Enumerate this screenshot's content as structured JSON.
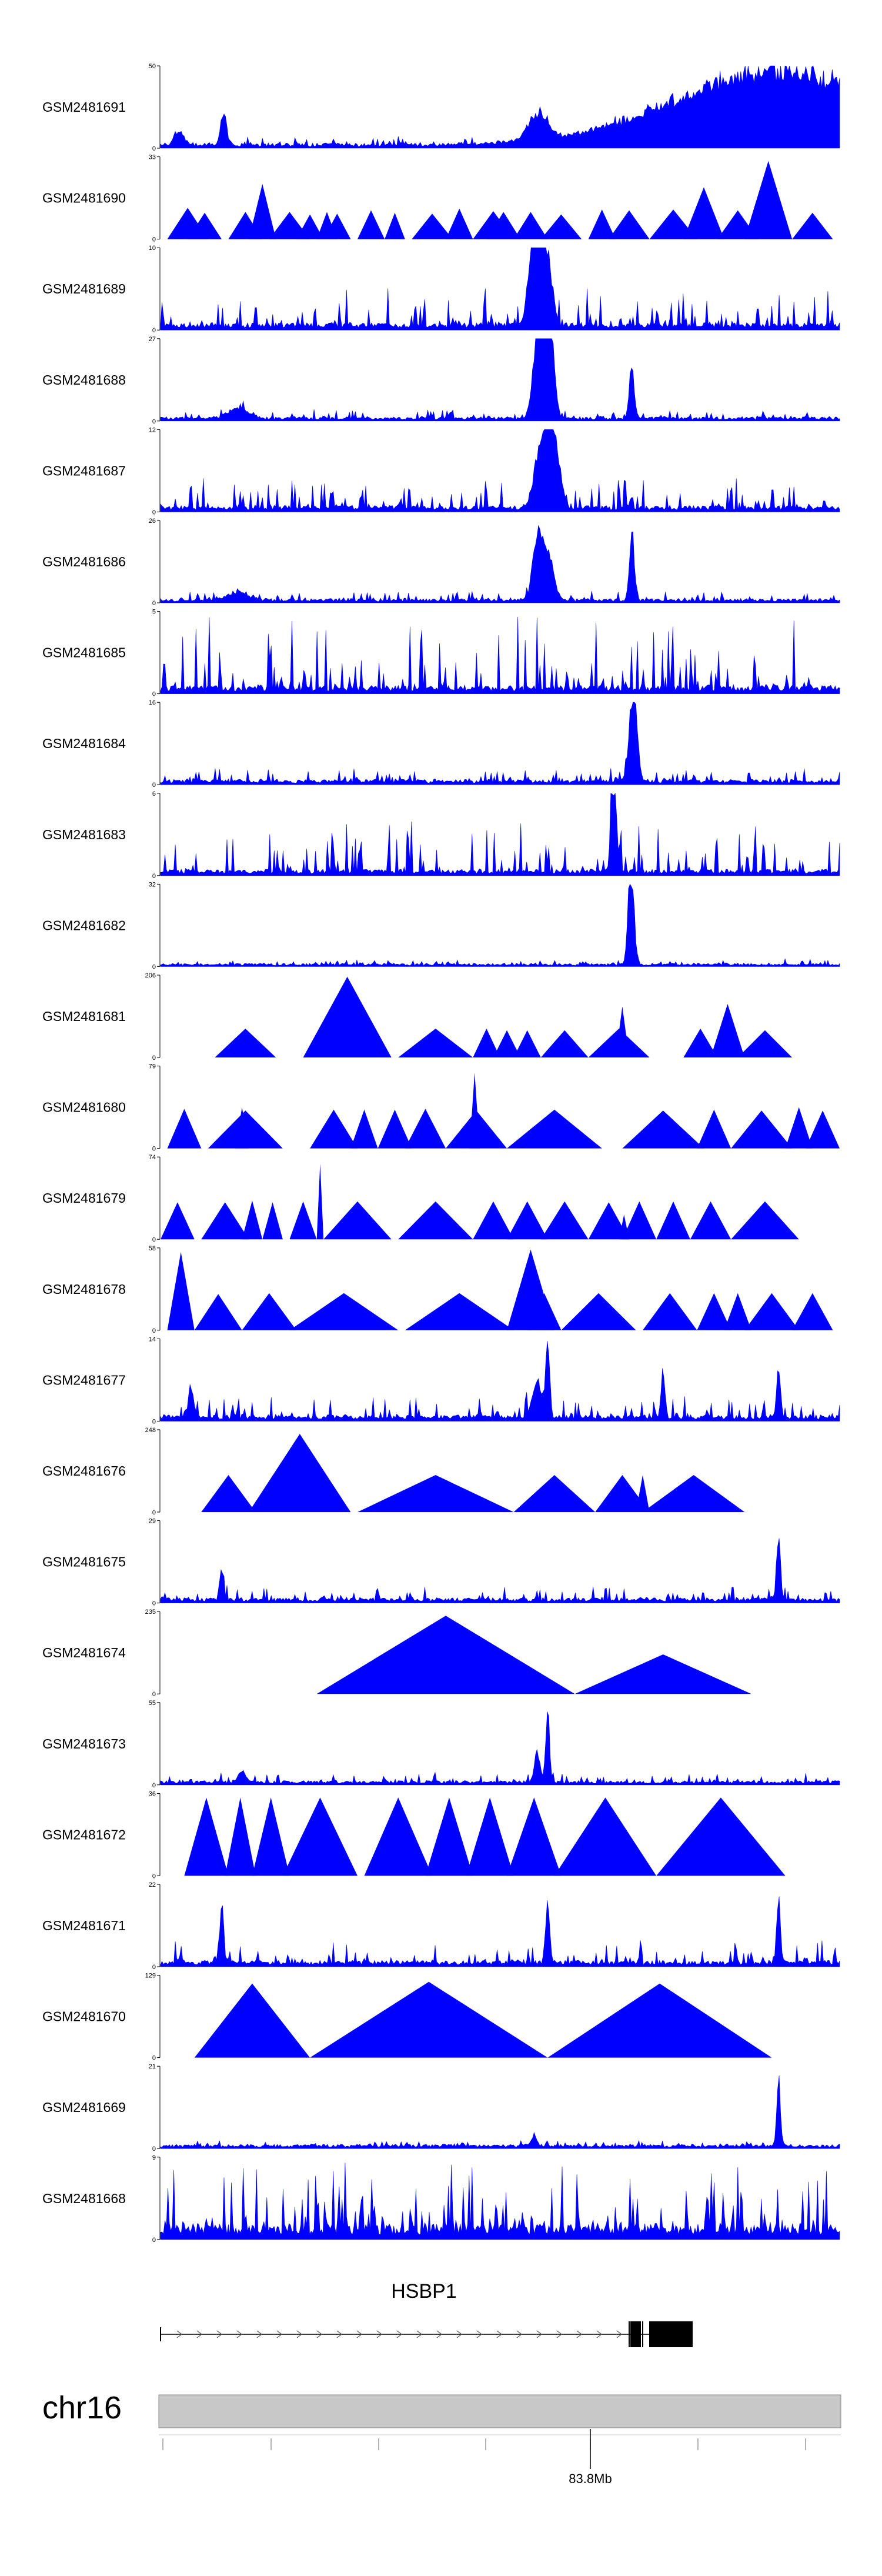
{
  "chart_data": {
    "type": "area",
    "title": "",
    "region": {
      "chromosome": "chr16",
      "axis_tick_label": "83.8Mb"
    },
    "gene": {
      "name": "HSBP1",
      "strand": "+"
    },
    "colors": {
      "signal": "#0000ff",
      "axis": "#000000",
      "ideogram": "#c8c8c8",
      "ideogram_border": "#8c8c8c",
      "gene": "#000000"
    },
    "tracks": [
      {
        "name": "GSM2481691",
        "ymax": 50,
        "style": "peaks",
        "baseline": 0.05,
        "noise": 0.08,
        "peaks": [
          [
            0.91,
            0.22,
            1.0
          ],
          [
            0.556,
            0.02,
            0.36
          ],
          [
            0.093,
            0.006,
            0.45
          ],
          [
            0.028,
            0.01,
            0.2
          ]
        ]
      },
      {
        "name": "GSM2481690",
        "ymax": 33,
        "style": "triangles",
        "triangles": [
          [
            0.01,
            0.07,
            0.38
          ],
          [
            0.04,
            0.09,
            0.32
          ],
          [
            0.1,
            0.15,
            0.33
          ],
          [
            0.13,
            0.17,
            0.67
          ],
          [
            0.16,
            0.22,
            0.33
          ],
          [
            0.2,
            0.24,
            0.3
          ],
          [
            0.23,
            0.26,
            0.33
          ],
          [
            0.24,
            0.28,
            0.31
          ],
          [
            0.29,
            0.33,
            0.35
          ],
          [
            0.33,
            0.36,
            0.32
          ],
          [
            0.37,
            0.43,
            0.31
          ],
          [
            0.42,
            0.46,
            0.37
          ],
          [
            0.46,
            0.52,
            0.34
          ],
          [
            0.48,
            0.53,
            0.33
          ],
          [
            0.52,
            0.57,
            0.33
          ],
          [
            0.56,
            0.62,
            0.3
          ],
          [
            0.63,
            0.67,
            0.36
          ],
          [
            0.66,
            0.72,
            0.35
          ],
          [
            0.72,
            0.79,
            0.36
          ],
          [
            0.77,
            0.83,
            0.63
          ],
          [
            0.82,
            0.88,
            0.35
          ],
          [
            0.86,
            0.93,
            0.95
          ],
          [
            0.93,
            0.99,
            0.32
          ]
        ]
      },
      {
        "name": "GSM2481689",
        "ymax": 10,
        "style": "peaks",
        "baseline": 0.07,
        "noise": 0.45,
        "peaks": [
          [
            0.556,
            0.012,
            0.95
          ],
          [
            0.57,
            0.01,
            0.8
          ],
          [
            0.545,
            0.008,
            0.6
          ]
        ]
      },
      {
        "name": "GSM2481688",
        "ymax": 27,
        "style": "peaks",
        "baseline": 0.04,
        "noise": 0.1,
        "peaks": [
          [
            0.565,
            0.012,
            0.95
          ],
          [
            0.555,
            0.01,
            0.85
          ],
          [
            0.575,
            0.008,
            0.75
          ],
          [
            0.694,
            0.005,
            0.7
          ],
          [
            0.115,
            0.02,
            0.15
          ]
        ]
      },
      {
        "name": "GSM2481687",
        "ymax": 12,
        "style": "peaks",
        "baseline": 0.06,
        "noise": 0.35,
        "peaks": [
          [
            0.572,
            0.008,
            0.92
          ],
          [
            0.558,
            0.012,
            0.8
          ],
          [
            0.583,
            0.01,
            0.65
          ]
        ]
      },
      {
        "name": "GSM2481686",
        "ymax": 26,
        "style": "peaks",
        "baseline": 0.04,
        "noise": 0.1,
        "peaks": [
          [
            0.555,
            0.01,
            0.8
          ],
          [
            0.57,
            0.012,
            0.6
          ],
          [
            0.694,
            0.005,
            0.95
          ],
          [
            0.115,
            0.02,
            0.12
          ]
        ]
      },
      {
        "name": "GSM2481685",
        "ymax": 5,
        "style": "peaks",
        "baseline": 0.08,
        "noise": 0.85,
        "peaks": []
      },
      {
        "name": "GSM2481684",
        "ymax": 16,
        "style": "peaks",
        "baseline": 0.05,
        "noise": 0.15,
        "peaks": [
          [
            0.694,
            0.007,
            0.95
          ],
          [
            0.7,
            0.006,
            0.55
          ]
        ]
      },
      {
        "name": "GSM2481683",
        "ymax": 6,
        "style": "peaks",
        "baseline": 0.06,
        "noise": 0.6,
        "peaks": [
          [
            0.665,
            0.004,
            0.95
          ],
          [
            0.67,
            0.004,
            0.85
          ]
        ]
      },
      {
        "name": "GSM2481682",
        "ymax": 32,
        "style": "peaks",
        "baseline": 0.03,
        "noise": 0.06,
        "peaks": [
          [
            0.694,
            0.006,
            0.95
          ],
          [
            0.69,
            0.004,
            0.6
          ]
        ]
      },
      {
        "name": "GSM2481681",
        "ymax": 206,
        "style": "triangles",
        "triangles": [
          [
            0.08,
            0.17,
            0.35
          ],
          [
            0.21,
            0.34,
            0.98
          ],
          [
            0.35,
            0.46,
            0.35
          ],
          [
            0.46,
            0.5,
            0.35
          ],
          [
            0.49,
            0.53,
            0.33
          ],
          [
            0.52,
            0.56,
            0.33
          ],
          [
            0.56,
            0.63,
            0.33
          ],
          [
            0.63,
            0.72,
            0.35
          ],
          [
            0.67,
            0.69,
            0.62
          ],
          [
            0.77,
            0.82,
            0.35
          ],
          [
            0.81,
            0.84,
            0.34
          ],
          [
            0.85,
            0.93,
            0.33
          ],
          [
            0.81,
            0.86,
            0.65
          ]
        ]
      },
      {
        "name": "GSM2481680",
        "ymax": 79,
        "style": "triangles",
        "triangles": [
          [
            0.01,
            0.06,
            0.48
          ],
          [
            0.07,
            0.18,
            0.46
          ],
          [
            0.11,
            0.13,
            0.5
          ],
          [
            0.22,
            0.29,
            0.47
          ],
          [
            0.28,
            0.32,
            0.47
          ],
          [
            0.32,
            0.37,
            0.47
          ],
          [
            0.36,
            0.42,
            0.48
          ],
          [
            0.42,
            0.51,
            0.46
          ],
          [
            0.455,
            0.47,
            0.92
          ],
          [
            0.51,
            0.65,
            0.47
          ],
          [
            0.68,
            0.8,
            0.46
          ],
          [
            0.79,
            0.84,
            0.47
          ],
          [
            0.84,
            0.93,
            0.46
          ],
          [
            0.92,
            0.96,
            0.5
          ],
          [
            0.95,
            1.0,
            0.46
          ]
        ]
      },
      {
        "name": "GSM2481679",
        "ymax": 74,
        "style": "triangles",
        "triangles": [
          [
            0.0,
            0.05,
            0.45
          ],
          [
            0.06,
            0.13,
            0.45
          ],
          [
            0.12,
            0.15,
            0.47
          ],
          [
            0.15,
            0.18,
            0.45
          ],
          [
            0.19,
            0.23,
            0.46
          ],
          [
            0.23,
            0.24,
            0.92
          ],
          [
            0.24,
            0.34,
            0.46
          ],
          [
            0.35,
            0.46,
            0.46
          ],
          [
            0.46,
            0.52,
            0.46
          ],
          [
            0.51,
            0.57,
            0.46
          ],
          [
            0.56,
            0.63,
            0.46
          ],
          [
            0.63,
            0.69,
            0.45
          ],
          [
            0.68,
            0.73,
            0.46
          ],
          [
            0.73,
            0.78,
            0.46
          ],
          [
            0.78,
            0.84,
            0.46
          ],
          [
            0.84,
            0.94,
            0.46
          ],
          [
            0.675,
            0.69,
            0.3
          ]
        ]
      },
      {
        "name": "GSM2481678",
        "ymax": 58,
        "style": "triangles",
        "triangles": [
          [
            0.01,
            0.05,
            0.95
          ],
          [
            0.05,
            0.12,
            0.44
          ],
          [
            0.12,
            0.2,
            0.45
          ],
          [
            0.19,
            0.35,
            0.45
          ],
          [
            0.36,
            0.52,
            0.45
          ],
          [
            0.51,
            0.58,
            0.98
          ],
          [
            0.54,
            0.59,
            0.45
          ],
          [
            0.59,
            0.7,
            0.45
          ],
          [
            0.71,
            0.79,
            0.45
          ],
          [
            0.79,
            0.84,
            0.45
          ],
          [
            0.83,
            0.87,
            0.45
          ],
          [
            0.86,
            0.94,
            0.45
          ],
          [
            0.93,
            0.99,
            0.45
          ]
        ]
      },
      {
        "name": "GSM2481677",
        "ymax": 14,
        "style": "peaks",
        "baseline": 0.06,
        "noise": 0.25,
        "peaks": [
          [
            0.57,
            0.004,
            0.95
          ],
          [
            0.555,
            0.01,
            0.5
          ],
          [
            0.91,
            0.004,
            0.7
          ],
          [
            0.74,
            0.004,
            0.6
          ],
          [
            0.045,
            0.005,
            0.45
          ]
        ]
      },
      {
        "name": "GSM2481676",
        "ymax": 248,
        "style": "triangles",
        "triangles": [
          [
            0.06,
            0.14,
            0.45
          ],
          [
            0.13,
            0.28,
            0.95
          ],
          [
            0.29,
            0.52,
            0.45
          ],
          [
            0.52,
            0.64,
            0.45
          ],
          [
            0.64,
            0.72,
            0.45
          ],
          [
            0.71,
            0.86,
            0.45
          ],
          [
            0.7,
            0.72,
            0.45
          ]
        ]
      },
      {
        "name": "GSM2481675",
        "ymax": 29,
        "style": "peaks",
        "baseline": 0.05,
        "noise": 0.15,
        "peaks": [
          [
            0.91,
            0.004,
            0.9
          ],
          [
            0.09,
            0.004,
            0.45
          ]
        ]
      },
      {
        "name": "GSM2481674",
        "ymax": 235,
        "style": "triangles",
        "triangles": [
          [
            0.23,
            0.61,
            0.95
          ],
          [
            0.61,
            0.87,
            0.48
          ]
        ]
      },
      {
        "name": "GSM2481673",
        "ymax": 55,
        "style": "peaks",
        "baseline": 0.04,
        "noise": 0.12,
        "peaks": [
          [
            0.57,
            0.004,
            0.95
          ],
          [
            0.555,
            0.006,
            0.4
          ],
          [
            0.12,
            0.008,
            0.15
          ]
        ]
      },
      {
        "name": "GSM2481672",
        "ymax": 36,
        "style": "triangles",
        "triangles": [
          [
            0.035,
            0.1,
            0.95
          ],
          [
            0.095,
            0.14,
            0.95
          ],
          [
            0.135,
            0.19,
            0.95
          ],
          [
            0.18,
            0.29,
            0.95
          ],
          [
            0.3,
            0.4,
            0.95
          ],
          [
            0.39,
            0.46,
            0.95
          ],
          [
            0.45,
            0.52,
            0.95
          ],
          [
            0.51,
            0.59,
            0.95
          ],
          [
            0.58,
            0.73,
            0.95
          ],
          [
            0.73,
            0.92,
            0.95
          ]
        ]
      },
      {
        "name": "GSM2481671",
        "ymax": 22,
        "style": "peaks",
        "baseline": 0.06,
        "noise": 0.25,
        "peaks": [
          [
            0.57,
            0.004,
            0.9
          ],
          [
            0.91,
            0.004,
            0.92
          ],
          [
            0.09,
            0.004,
            0.75
          ]
        ]
      },
      {
        "name": "GSM2481670",
        "ymax": 129,
        "style": "triangles",
        "triangles": [
          [
            0.05,
            0.22,
            0.9
          ],
          [
            0.22,
            0.57,
            0.92
          ],
          [
            0.57,
            0.9,
            0.9
          ]
        ]
      },
      {
        "name": "GSM2481669",
        "ymax": 21,
        "style": "peaks",
        "baseline": 0.04,
        "noise": 0.06,
        "peaks": [
          [
            0.91,
            0.004,
            0.9
          ],
          [
            0.55,
            0.006,
            0.12
          ]
        ]
      },
      {
        "name": "GSM2481668",
        "ymax": 9,
        "style": "peaks",
        "baseline": 0.15,
        "noise": 0.8,
        "peaks": []
      }
    ]
  }
}
